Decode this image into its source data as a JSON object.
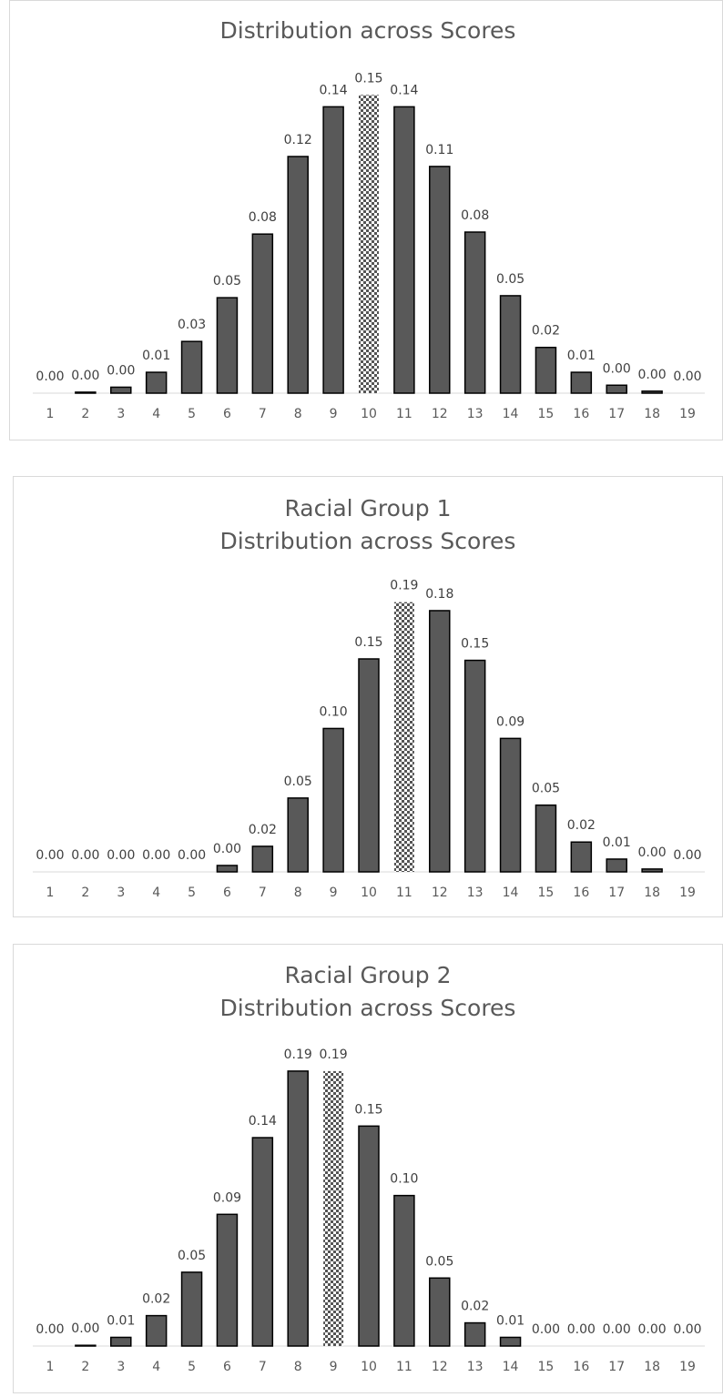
{
  "chart_data": [
    {
      "type": "bar",
      "title": [
        "Distribution across Scores"
      ],
      "categories": [
        "1",
        "2",
        "3",
        "4",
        "5",
        "6",
        "7",
        "8",
        "9",
        "10",
        "11",
        "12",
        "13",
        "14",
        "15",
        "16",
        "17",
        "18",
        "19"
      ],
      "values": [
        0,
        0.0005,
        0.003,
        0.0105,
        0.026,
        0.048,
        0.08,
        0.119,
        0.144,
        0.15,
        0.144,
        0.114,
        0.081,
        0.049,
        0.023,
        0.0105,
        0.004,
        0.001,
        0
      ],
      "value_labels": [
        "0.00",
        "0.00",
        "0.00",
        "0.01",
        "0.03",
        "0.05",
        "0.08",
        "0.12",
        "0.14",
        "0.15",
        "0.14",
        "0.11",
        "0.08",
        "0.05",
        "0.02",
        "0.01",
        "0.00",
        "0.00",
        "0.00"
      ],
      "color": "#595959",
      "highlight_category": "10",
      "ylim": [
        0,
        0.2
      ]
    },
    {
      "type": "bar",
      "title": [
        "Racial Group 1",
        "Distribution across Scores"
      ],
      "categories": [
        "1",
        "2",
        "3",
        "4",
        "5",
        "6",
        "7",
        "8",
        "9",
        "10",
        "11",
        "12",
        "13",
        "14",
        "15",
        "16",
        "17",
        "18",
        "19"
      ],
      "values": [
        0,
        0,
        0,
        0,
        0,
        0.0045,
        0.018,
        0.052,
        0.101,
        0.15,
        0.19,
        0.184,
        0.149,
        0.094,
        0.047,
        0.021,
        0.009,
        0.002,
        0
      ],
      "value_labels": [
        "0.00",
        "0.00",
        "0.00",
        "0.00",
        "0.00",
        "0.00",
        "0.02",
        "0.05",
        "0.10",
        "0.15",
        "0.19",
        "0.18",
        "0.15",
        "0.09",
        "0.05",
        "0.02",
        "0.01",
        "0.00",
        "0.00"
      ],
      "color": "#595959",
      "highlight_category": "11",
      "ylim": [
        0,
        0.2
      ]
    },
    {
      "type": "bar",
      "title": [
        "Racial Group 2",
        "Distribution across Scores"
      ],
      "categories": [
        "1",
        "2",
        "3",
        "4",
        "5",
        "6",
        "7",
        "8",
        "9",
        "10",
        "11",
        "12",
        "13",
        "14",
        "15",
        "16",
        "17",
        "18",
        "19"
      ],
      "values": [
        0,
        0.0005,
        0.006,
        0.021,
        0.051,
        0.091,
        0.144,
        0.19,
        0.19,
        0.152,
        0.104,
        0.047,
        0.016,
        0.006,
        0,
        0,
        0,
        0,
        0
      ],
      "value_labels": [
        "0.00",
        "0.00",
        "0.01",
        "0.02",
        "0.05",
        "0.09",
        "0.14",
        "0.19",
        "0.19",
        "0.15",
        "0.10",
        "0.05",
        "0.02",
        "0.01",
        "0.00",
        "0.00",
        "0.00",
        "0.00",
        "0.00"
      ],
      "color": "#595959",
      "highlight_category": "9",
      "ylim": [
        0,
        0.2
      ]
    }
  ]
}
